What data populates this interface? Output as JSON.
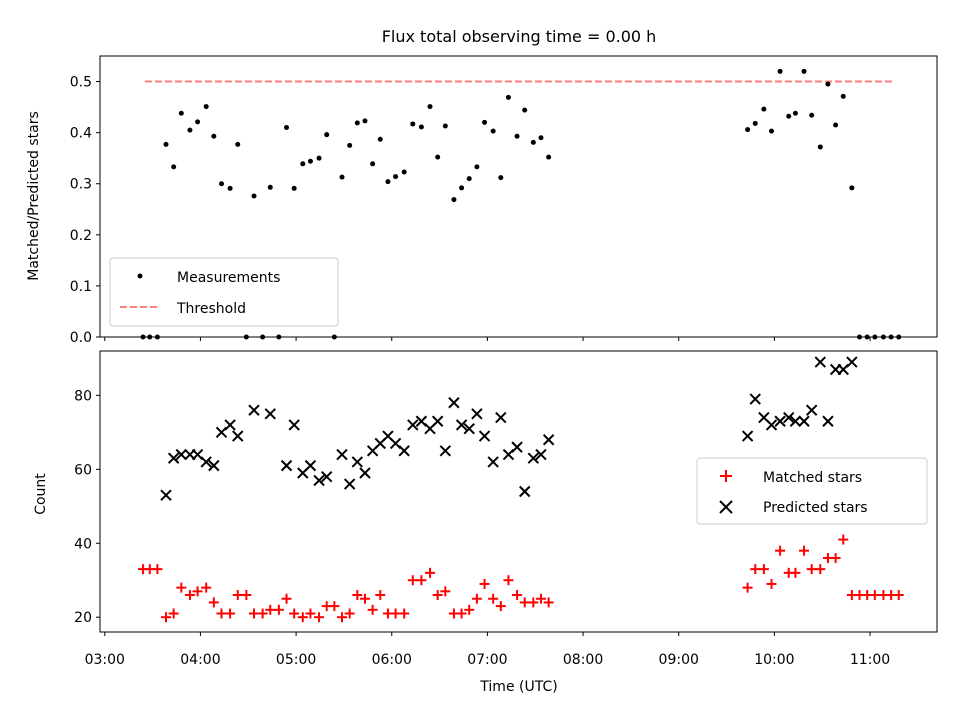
{
  "chart_data": [
    {
      "type": "scatter",
      "title": "Flux total observing time = 0.00 h",
      "xlabel": "",
      "ylabel": "Matched/Predicted stars",
      "ylim": [
        0,
        0.55
      ],
      "xlim_hours": [
        2.95,
        11.7
      ],
      "yticks": [
        0.0,
        0.1,
        0.2,
        0.3,
        0.4,
        0.5
      ],
      "ytick_labels": [
        "0.0",
        "0.1",
        "0.2",
        "0.3",
        "0.4",
        "0.5"
      ],
      "legend_position": "lower-left",
      "legend": [
        "Measurements",
        "Threshold"
      ],
      "threshold": {
        "y": 0.5,
        "x_from": 3.42,
        "x_to": 11.25,
        "color": "#ff7f7f"
      },
      "series": [
        {
          "name": "Measurements",
          "marker": "dot",
          "color": "#000000",
          "points": [
            [
              3.4,
              0.0
            ],
            [
              3.47,
              0.0
            ],
            [
              3.55,
              0.0
            ],
            [
              3.64,
              0.377
            ],
            [
              3.72,
              0.333
            ],
            [
              3.8,
              0.438
            ],
            [
              3.89,
              0.405
            ],
            [
              3.97,
              0.421
            ],
            [
              4.06,
              0.451
            ],
            [
              4.14,
              0.393
            ],
            [
              4.22,
              0.3
            ],
            [
              4.31,
              0.291
            ],
            [
              4.39,
              0.377
            ],
            [
              4.48,
              0.0
            ],
            [
              4.56,
              0.276
            ],
            [
              4.65,
              0.0
            ],
            [
              4.73,
              0.293
            ],
            [
              4.82,
              0.0
            ],
            [
              4.9,
              0.41
            ],
            [
              4.98,
              0.291
            ],
            [
              5.07,
              0.339
            ],
            [
              5.15,
              0.344
            ],
            [
              5.24,
              0.35
            ],
            [
              5.32,
              0.396
            ],
            [
              5.4,
              0.0
            ],
            [
              5.48,
              0.313
            ],
            [
              5.56,
              0.375
            ],
            [
              5.64,
              0.419
            ],
            [
              5.72,
              0.423
            ],
            [
              5.8,
              0.339
            ],
            [
              5.88,
              0.387
            ],
            [
              5.96,
              0.304
            ],
            [
              6.04,
              0.314
            ],
            [
              6.13,
              0.323
            ],
            [
              6.22,
              0.417
            ],
            [
              6.31,
              0.411
            ],
            [
              6.4,
              0.451
            ],
            [
              6.48,
              0.352
            ],
            [
              6.56,
              0.413
            ],
            [
              6.65,
              0.269
            ],
            [
              6.73,
              0.292
            ],
            [
              6.81,
              0.31
            ],
            [
              6.89,
              0.333
            ],
            [
              6.97,
              0.42
            ],
            [
              7.06,
              0.403
            ],
            [
              7.14,
              0.312
            ],
            [
              7.22,
              0.469
            ],
            [
              7.31,
              0.393
            ],
            [
              7.39,
              0.444
            ],
            [
              7.48,
              0.381
            ],
            [
              7.56,
              0.39
            ],
            [
              7.64,
              0.352
            ],
            [
              9.72,
              0.406
            ],
            [
              9.8,
              0.418
            ],
            [
              9.89,
              0.446
            ],
            [
              9.97,
              0.403
            ],
            [
              10.06,
              0.52
            ],
            [
              10.15,
              0.432
            ],
            [
              10.22,
              0.438
            ],
            [
              10.31,
              0.52
            ],
            [
              10.39,
              0.434
            ],
            [
              10.48,
              0.372
            ],
            [
              10.56,
              0.495
            ],
            [
              10.64,
              0.415
            ],
            [
              10.72,
              0.471
            ],
            [
              10.81,
              0.292
            ],
            [
              10.89,
              0.0
            ],
            [
              10.97,
              0.0
            ],
            [
              11.05,
              0.0
            ],
            [
              11.14,
              0.0
            ],
            [
              11.22,
              0.0
            ],
            [
              11.3,
              0.0
            ]
          ]
        }
      ]
    },
    {
      "type": "scatter",
      "title": "",
      "xlabel": "Time (UTC)",
      "ylabel": "Count",
      "ylim": [
        16,
        92
      ],
      "xlim_hours": [
        2.95,
        11.7
      ],
      "yticks": [
        20,
        40,
        60,
        80
      ],
      "ytick_labels": [
        "20",
        "40",
        "60",
        "80"
      ],
      "xticks_hours": [
        3,
        4,
        5,
        6,
        7,
        8,
        9,
        10,
        11
      ],
      "xtick_labels": [
        "03:00",
        "04:00",
        "05:00",
        "06:00",
        "07:00",
        "08:00",
        "09:00",
        "10:00",
        "11:00"
      ],
      "legend_position": "right",
      "legend": [
        "Matched stars",
        "Predicted stars"
      ],
      "series": [
        {
          "name": "Matched stars",
          "marker": "plus",
          "color": "#ff0000",
          "points": [
            [
              3.4,
              33
            ],
            [
              3.47,
              33
            ],
            [
              3.55,
              33
            ],
            [
              3.64,
              20
            ],
            [
              3.72,
              21
            ],
            [
              3.8,
              28
            ],
            [
              3.89,
              26
            ],
            [
              3.97,
              27
            ],
            [
              4.06,
              28
            ],
            [
              4.14,
              24
            ],
            [
              4.22,
              21
            ],
            [
              4.31,
              21
            ],
            [
              4.39,
              26
            ],
            [
              4.48,
              26
            ],
            [
              4.56,
              21
            ],
            [
              4.65,
              21
            ],
            [
              4.73,
              22
            ],
            [
              4.82,
              22
            ],
            [
              4.9,
              25
            ],
            [
              4.98,
              21
            ],
            [
              5.07,
              20
            ],
            [
              5.15,
              21
            ],
            [
              5.24,
              20
            ],
            [
              5.32,
              23
            ],
            [
              5.4,
              23
            ],
            [
              5.48,
              20
            ],
            [
              5.56,
              21
            ],
            [
              5.64,
              26
            ],
            [
              5.72,
              25
            ],
            [
              5.8,
              22
            ],
            [
              5.88,
              26
            ],
            [
              5.96,
              21
            ],
            [
              6.04,
              21
            ],
            [
              6.13,
              21
            ],
            [
              6.22,
              30
            ],
            [
              6.31,
              30
            ],
            [
              6.4,
              32
            ],
            [
              6.48,
              26
            ],
            [
              6.56,
              27
            ],
            [
              6.65,
              21
            ],
            [
              6.73,
              21
            ],
            [
              6.81,
              22
            ],
            [
              6.89,
              25
            ],
            [
              6.97,
              29
            ],
            [
              7.06,
              25
            ],
            [
              7.14,
              23
            ],
            [
              7.22,
              30
            ],
            [
              7.31,
              26
            ],
            [
              7.39,
              24
            ],
            [
              7.48,
              24
            ],
            [
              7.56,
              25
            ],
            [
              7.64,
              24
            ],
            [
              9.72,
              28
            ],
            [
              9.8,
              33
            ],
            [
              9.89,
              33
            ],
            [
              9.97,
              29
            ],
            [
              10.06,
              38
            ],
            [
              10.15,
              32
            ],
            [
              10.22,
              32
            ],
            [
              10.31,
              38
            ],
            [
              10.39,
              33
            ],
            [
              10.48,
              33
            ],
            [
              10.56,
              36
            ],
            [
              10.64,
              36
            ],
            [
              10.72,
              41
            ],
            [
              10.81,
              26
            ],
            [
              10.89,
              26
            ],
            [
              10.97,
              26
            ],
            [
              11.05,
              26
            ],
            [
              11.14,
              26
            ],
            [
              11.22,
              26
            ],
            [
              11.3,
              26
            ]
          ]
        },
        {
          "name": "Predicted stars",
          "marker": "x",
          "color": "#000000",
          "points": [
            [
              3.64,
              53
            ],
            [
              3.72,
              63
            ],
            [
              3.8,
              64
            ],
            [
              3.89,
              64
            ],
            [
              3.97,
              64
            ],
            [
              4.06,
              62
            ],
            [
              4.14,
              61
            ],
            [
              4.22,
              70
            ],
            [
              4.31,
              72
            ],
            [
              4.39,
              69
            ],
            [
              4.56,
              76
            ],
            [
              4.73,
              75
            ],
            [
              4.9,
              61
            ],
            [
              4.98,
              72
            ],
            [
              5.07,
              59
            ],
            [
              5.15,
              61
            ],
            [
              5.24,
              57
            ],
            [
              5.32,
              58
            ],
            [
              5.48,
              64
            ],
            [
              5.56,
              56
            ],
            [
              5.64,
              62
            ],
            [
              5.72,
              59
            ],
            [
              5.8,
              65
            ],
            [
              5.88,
              67
            ],
            [
              5.96,
              69
            ],
            [
              6.04,
              67
            ],
            [
              6.13,
              65
            ],
            [
              6.22,
              72
            ],
            [
              6.31,
              73
            ],
            [
              6.4,
              71
            ],
            [
              6.48,
              73
            ],
            [
              6.56,
              65
            ],
            [
              6.65,
              78
            ],
            [
              6.73,
              72
            ],
            [
              6.81,
              71
            ],
            [
              6.89,
              75
            ],
            [
              6.97,
              69
            ],
            [
              7.06,
              62
            ],
            [
              7.14,
              74
            ],
            [
              7.22,
              64
            ],
            [
              7.31,
              66
            ],
            [
              7.39,
              54
            ],
            [
              7.48,
              63
            ],
            [
              7.56,
              64
            ],
            [
              7.64,
              68
            ],
            [
              9.72,
              69
            ],
            [
              9.8,
              79
            ],
            [
              9.89,
              74
            ],
            [
              9.97,
              72
            ],
            [
              10.06,
              73
            ],
            [
              10.15,
              74
            ],
            [
              10.22,
              73
            ],
            [
              10.31,
              73
            ],
            [
              10.39,
              76
            ],
            [
              10.56,
              73
            ],
            [
              10.48,
              89
            ],
            [
              10.64,
              87
            ],
            [
              10.72,
              87
            ],
            [
              10.81,
              89
            ]
          ]
        }
      ]
    }
  ]
}
